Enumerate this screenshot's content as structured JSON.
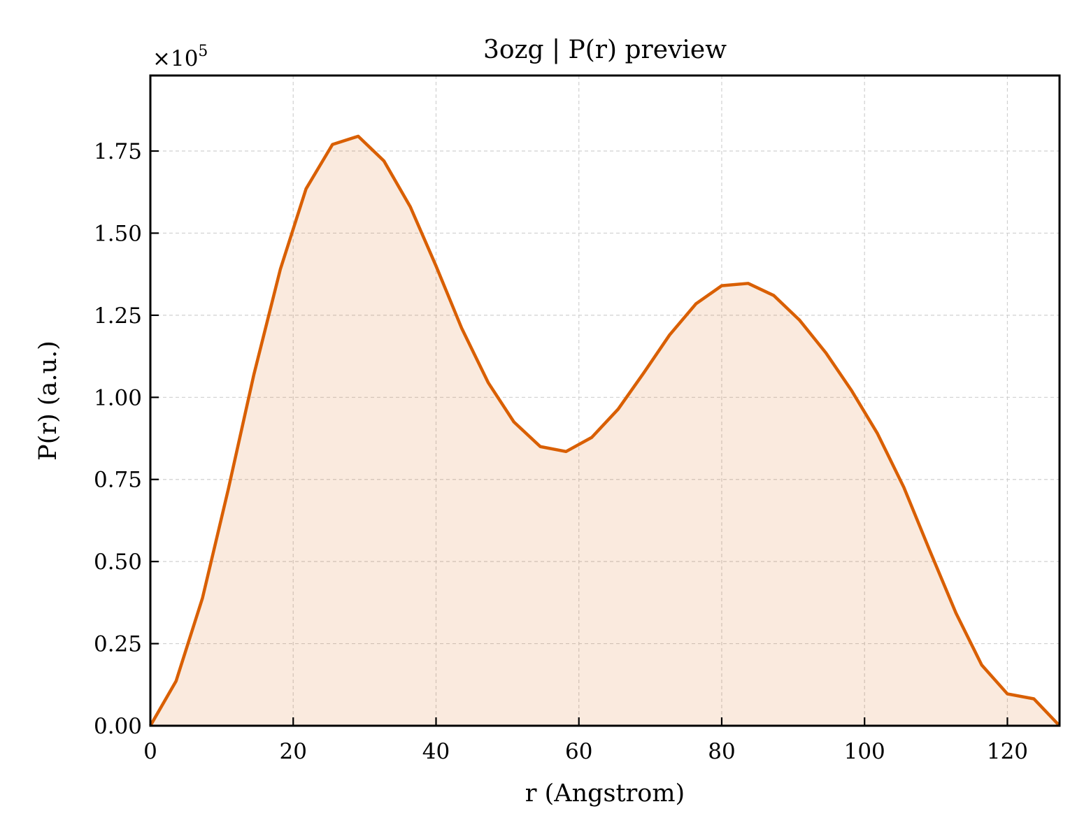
{
  "chart_data": {
    "type": "area",
    "title": "3ozg | P(r) preview",
    "xlabel": "r (Angstrom)",
    "ylabel": "P(r) (a.u.)",
    "y_offset_text": {
      "base": "×10",
      "exponent": "5"
    },
    "xlim": [
      0,
      127.3
    ],
    "ylim": [
      0,
      1.98
    ],
    "xticks": [
      0,
      20,
      40,
      60,
      80,
      100,
      120
    ],
    "xtick_labels": [
      "0",
      "20",
      "40",
      "60",
      "80",
      "100",
      "120"
    ],
    "yticks": [
      0,
      0.25,
      0.5,
      0.75,
      1.0,
      1.25,
      1.5,
      1.75
    ],
    "ytick_labels": [
      "0.00",
      "0.25",
      "0.50",
      "0.75",
      "1.00",
      "1.25",
      "1.50",
      "1.75"
    ],
    "grid": true,
    "y_scale_factor": 100000,
    "series": [
      {
        "color": "#d95f02",
        "fill_color": "#d95f02",
        "fill_opacity": 0.13,
        "x": [
          0,
          3.6,
          7.3,
          10.9,
          14.5,
          18.2,
          21.8,
          25.5,
          29.1,
          32.7,
          36.4,
          40.0,
          43.6,
          47.3,
          50.9,
          54.6,
          58.2,
          61.8,
          65.5,
          69.1,
          72.7,
          76.4,
          80.0,
          83.7,
          87.3,
          90.9,
          94.6,
          98.2,
          101.8,
          105.5,
          109.1,
          112.8,
          116.4,
          120.0,
          123.7,
          127.3
        ],
        "y": [
          0.0,
          0.136,
          0.389,
          0.719,
          1.07,
          1.39,
          1.635,
          1.77,
          1.795,
          1.72,
          1.58,
          1.4,
          1.21,
          1.045,
          0.925,
          0.85,
          0.835,
          0.878,
          0.964,
          1.075,
          1.19,
          1.285,
          1.34,
          1.347,
          1.31,
          1.235,
          1.135,
          1.02,
          0.89,
          0.726,
          0.535,
          0.343,
          0.185,
          0.097,
          0.082,
          0.0
        ]
      }
    ]
  }
}
